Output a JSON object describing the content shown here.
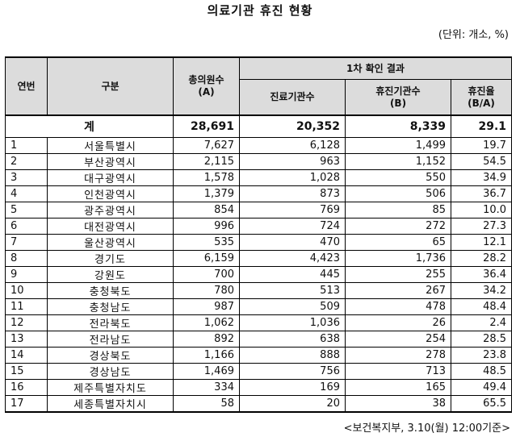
{
  "title": "의료기관 휴진 현황",
  "unit_note": "(단위: 개소, %)",
  "headers": {
    "no": "연번",
    "region": "구분",
    "total_clinics": "총의원수",
    "total_clinics_sub": "(A)",
    "group": "1차 확인 결과",
    "confirmed": "진료기관수",
    "closed": "휴진기관수",
    "closed_sub": "(B)",
    "rate": "휴진율",
    "rate_sub": "(B/A)"
  },
  "total": {
    "label": "계",
    "total_clinics": "28,691",
    "confirmed": "20,352",
    "closed": "8,339",
    "rate": "29.1"
  },
  "rows": [
    {
      "no": "1",
      "region": "서울특별시",
      "total_clinics": "7,627",
      "confirmed": "6,128",
      "closed": "1,499",
      "rate": "19.7"
    },
    {
      "no": "2",
      "region": "부산광역시",
      "total_clinics": "2,115",
      "confirmed": "963",
      "closed": "1,152",
      "rate": "54.5"
    },
    {
      "no": "3",
      "region": "대구광역시",
      "total_clinics": "1,578",
      "confirmed": "1,028",
      "closed": "550",
      "rate": "34.9"
    },
    {
      "no": "4",
      "region": "인천광역시",
      "total_clinics": "1,379",
      "confirmed": "873",
      "closed": "506",
      "rate": "36.7"
    },
    {
      "no": "5",
      "region": "광주광역시",
      "total_clinics": "854",
      "confirmed": "769",
      "closed": "85",
      "rate": "10.0"
    },
    {
      "no": "6",
      "region": "대전광역시",
      "total_clinics": "996",
      "confirmed": "724",
      "closed": "272",
      "rate": "27.3"
    },
    {
      "no": "7",
      "region": "울산광역시",
      "total_clinics": "535",
      "confirmed": "470",
      "closed": "65",
      "rate": "12.1"
    },
    {
      "no": "8",
      "region": "경기도",
      "total_clinics": "6,159",
      "confirmed": "4,423",
      "closed": "1,736",
      "rate": "28.2"
    },
    {
      "no": "9",
      "region": "강원도",
      "total_clinics": "700",
      "confirmed": "445",
      "closed": "255",
      "rate": "36.4"
    },
    {
      "no": "10",
      "region": "충청북도",
      "total_clinics": "780",
      "confirmed": "513",
      "closed": "267",
      "rate": "34.2"
    },
    {
      "no": "11",
      "region": "충청남도",
      "total_clinics": "987",
      "confirmed": "509",
      "closed": "478",
      "rate": "48.4"
    },
    {
      "no": "12",
      "region": "전라북도",
      "total_clinics": "1,062",
      "confirmed": "1,036",
      "closed": "26",
      "rate": "2.4"
    },
    {
      "no": "13",
      "region": "전라남도",
      "total_clinics": "892",
      "confirmed": "638",
      "closed": "254",
      "rate": "28.5"
    },
    {
      "no": "14",
      "region": "경상북도",
      "total_clinics": "1,166",
      "confirmed": "888",
      "closed": "278",
      "rate": "23.8"
    },
    {
      "no": "15",
      "region": "경상남도",
      "total_clinics": "1,469",
      "confirmed": "756",
      "closed": "713",
      "rate": "48.5"
    },
    {
      "no": "16",
      "region": "제주특별자치도",
      "total_clinics": "334",
      "confirmed": "169",
      "closed": "165",
      "rate": "49.4"
    },
    {
      "no": "17",
      "region": "세종특별자치시",
      "total_clinics": "58",
      "confirmed": "20",
      "closed": "38",
      "rate": "65.5"
    }
  ],
  "source": "<보건복지부, 3.10(월) 12:00기준>"
}
